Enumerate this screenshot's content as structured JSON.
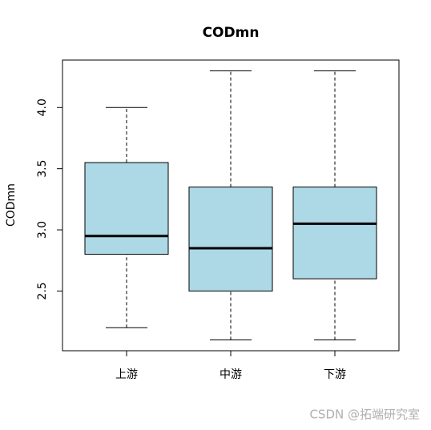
{
  "chart_data": {
    "type": "boxplot",
    "title": "CODmn",
    "y_label": "CODmn",
    "categories": [
      "上游",
      "中游",
      "下游"
    ],
    "boxes": [
      {
        "low": 2.2,
        "q1": 2.8,
        "median": 2.95,
        "q3": 3.55,
        "high": 4.0
      },
      {
        "low": 2.1,
        "q1": 2.5,
        "median": 2.85,
        "q3": 3.35,
        "high": 4.3
      },
      {
        "low": 2.1,
        "q1": 2.6,
        "median": 3.05,
        "q3": 3.35,
        "high": 4.3
      }
    ],
    "color": "#add8e6",
    "ylim": [
      2.012,
      4.388
    ],
    "yticks": [
      {
        "value": 2.5,
        "label": "2.5"
      },
      {
        "value": 3,
        "label": "3.0"
      },
      {
        "value": 3.5,
        "label": "3.5"
      },
      {
        "value": 4,
        "label": "4.0"
      }
    ]
  },
  "watermark": "CSDN @拓端研究室"
}
